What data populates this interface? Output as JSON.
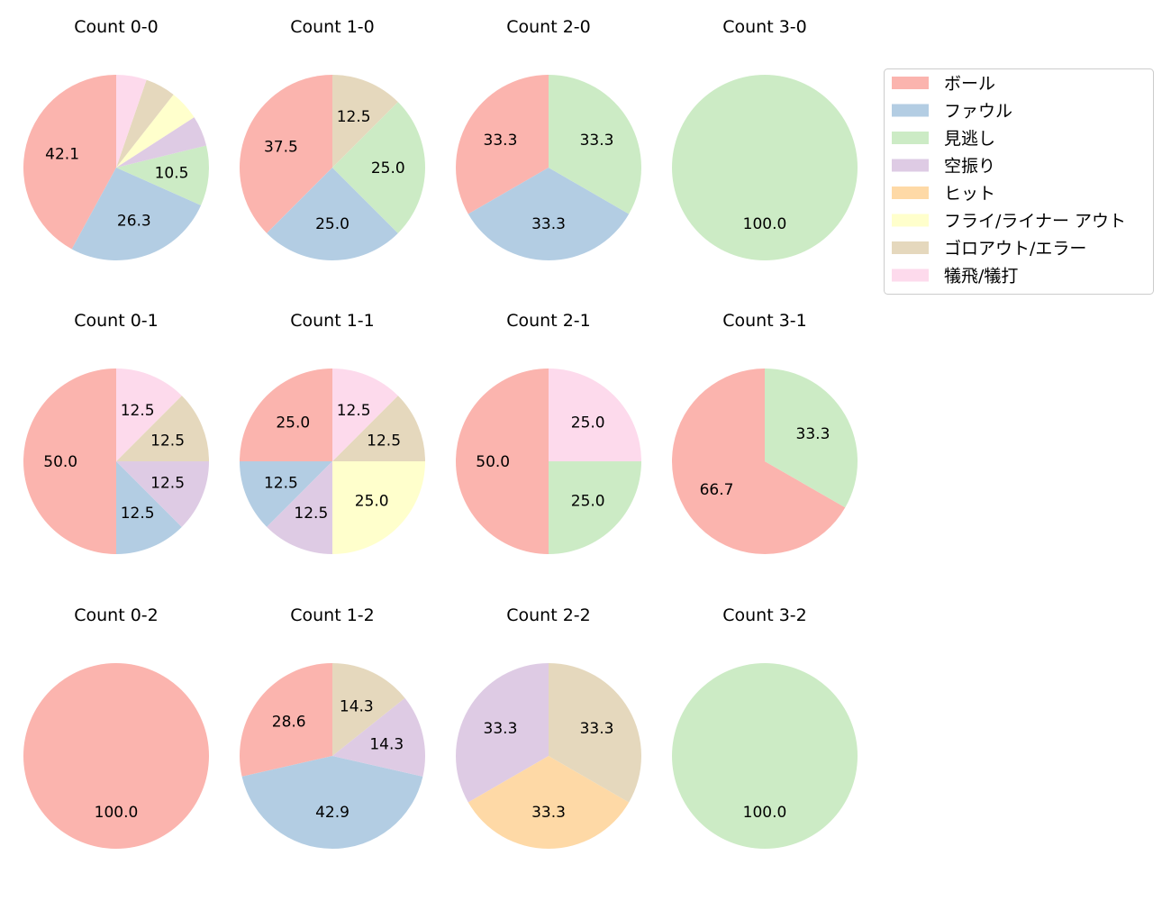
{
  "chart_data": {
    "type": "pie",
    "categories": [
      "ボール",
      "ファウル",
      "見逃し",
      "空振り",
      "ヒット",
      "フライ/ライナー アウト",
      "ゴロアウト/エラー",
      "犠飛/犠打"
    ],
    "colors": [
      "#fbb4ae",
      "#b3cde3",
      "#ccebc5",
      "#decbe4",
      "#fed9a6",
      "#ffffcc",
      "#e5d8bd",
      "#fddaec"
    ],
    "legend": {
      "position": "top-right"
    },
    "pies": [
      {
        "title": "Count 0-0",
        "values": [
          42.1,
          26.3,
          10.5,
          5.3,
          0,
          5.3,
          5.3,
          5.3
        ]
      },
      {
        "title": "Count 1-0",
        "values": [
          37.5,
          25.0,
          25.0,
          0,
          0,
          0,
          12.5,
          0
        ]
      },
      {
        "title": "Count 2-0",
        "values": [
          33.3,
          33.3,
          33.3,
          0,
          0,
          0,
          0,
          0
        ]
      },
      {
        "title": "Count 3-0",
        "values": [
          0,
          0,
          100.0,
          0,
          0,
          0,
          0,
          0
        ]
      },
      {
        "title": "Count 0-1",
        "values": [
          50.0,
          12.5,
          0,
          12.5,
          0,
          0,
          12.5,
          12.5
        ]
      },
      {
        "title": "Count 1-1",
        "values": [
          25.0,
          12.5,
          0,
          12.5,
          0,
          25.0,
          12.5,
          12.5
        ]
      },
      {
        "title": "Count 2-1",
        "values": [
          50.0,
          0,
          25.0,
          0,
          0,
          0,
          0,
          25.0
        ]
      },
      {
        "title": "Count 3-1",
        "values": [
          66.7,
          0,
          33.3,
          0,
          0,
          0,
          0,
          0
        ]
      },
      {
        "title": "Count 0-2",
        "values": [
          100.0,
          0,
          0,
          0,
          0,
          0,
          0,
          0
        ]
      },
      {
        "title": "Count 1-2",
        "values": [
          28.6,
          42.9,
          0,
          14.3,
          0,
          0,
          14.3,
          0
        ]
      },
      {
        "title": "Count 2-2",
        "values": [
          0,
          0,
          0,
          33.3,
          33.3,
          0,
          33.3,
          0
        ]
      },
      {
        "title": "Count 3-2",
        "values": [
          0,
          0,
          100.0,
          0,
          0,
          0,
          0,
          0
        ]
      }
    ]
  }
}
